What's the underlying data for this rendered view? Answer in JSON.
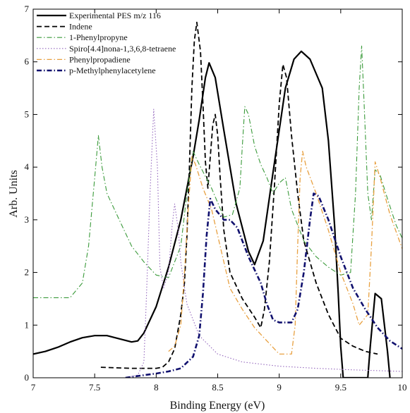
{
  "chart_data": {
    "type": "line",
    "title": "",
    "xlabel": "Binding Energy (eV)",
    "ylabel": "Arb. Units",
    "xlim": [
      7,
      10
    ],
    "ylim": [
      0,
      7
    ],
    "xticks": [
      7,
      7.5,
      8,
      8.5,
      9,
      9.5,
      10
    ],
    "xtick_labels": [
      "7",
      "7.5",
      "8",
      "8.5",
      "9",
      "9.5",
      "10"
    ],
    "yticks": [
      0,
      1,
      2,
      3,
      4,
      5,
      6,
      7
    ],
    "ytick_labels": [
      "0",
      "1",
      "2",
      "3",
      "4",
      "5",
      "6",
      "7"
    ],
    "grid": false,
    "legend_position": "top-center",
    "series": [
      {
        "name": "Experimental PES m/z 116",
        "color": "#000000",
        "dash": "solid",
        "width": 2.2,
        "points": [
          [
            7,
            0.45
          ],
          [
            7.1,
            0.5
          ],
          [
            7.2,
            0.58
          ],
          [
            7.3,
            0.68
          ],
          [
            7.4,
            0.76
          ],
          [
            7.5,
            0.8
          ],
          [
            7.6,
            0.8
          ],
          [
            7.7,
            0.74
          ],
          [
            7.8,
            0.68
          ],
          [
            7.85,
            0.7
          ],
          [
            7.9,
            0.85
          ],
          [
            8.0,
            1.35
          ],
          [
            8.1,
            2.1
          ],
          [
            8.2,
            3.0
          ],
          [
            8.3,
            4.2
          ],
          [
            8.35,
            4.9
          ],
          [
            8.4,
            5.7
          ],
          [
            8.43,
            5.98
          ],
          [
            8.48,
            5.7
          ],
          [
            8.55,
            4.7
          ],
          [
            8.65,
            3.3
          ],
          [
            8.75,
            2.4
          ],
          [
            8.8,
            2.15
          ],
          [
            8.87,
            2.6
          ],
          [
            8.95,
            3.9
          ],
          [
            9.05,
            5.5
          ],
          [
            9.12,
            6.05
          ],
          [
            9.18,
            6.2
          ],
          [
            9.25,
            6.05
          ],
          [
            9.35,
            5.5
          ],
          [
            9.4,
            4.5
          ],
          [
            9.45,
            2.9
          ],
          [
            9.48,
            1.6
          ],
          [
            9.5,
            0.6
          ],
          [
            9.52,
            0.0
          ],
          [
            9.72,
            0.0
          ],
          [
            9.74,
            0.6
          ],
          [
            9.78,
            1.6
          ],
          [
            9.83,
            1.5
          ],
          [
            9.88,
            0.5
          ],
          [
            9.9,
            0.0
          ]
        ]
      },
      {
        "name": "Indene",
        "color": "#000000",
        "dash": "dash",
        "width": 1.8,
        "points": [
          [
            7.55,
            0.2
          ],
          [
            7.8,
            0.18
          ],
          [
            8.0,
            0.18
          ],
          [
            8.05,
            0.2
          ],
          [
            8.1,
            0.3
          ],
          [
            8.15,
            0.55
          ],
          [
            8.2,
            1.2
          ],
          [
            8.23,
            1.8
          ],
          [
            8.25,
            2.7
          ],
          [
            8.27,
            4.0
          ],
          [
            8.29,
            5.5
          ],
          [
            8.31,
            6.4
          ],
          [
            8.33,
            6.75
          ],
          [
            8.36,
            6.2
          ],
          [
            8.38,
            5.2
          ],
          [
            8.4,
            4.1
          ],
          [
            8.42,
            3.6
          ],
          [
            8.44,
            4.2
          ],
          [
            8.46,
            4.8
          ],
          [
            8.48,
            5.0
          ],
          [
            8.5,
            4.6
          ],
          [
            8.52,
            3.8
          ],
          [
            8.55,
            2.8
          ],
          [
            8.6,
            2.0
          ],
          [
            8.7,
            1.5
          ],
          [
            8.8,
            1.15
          ],
          [
            8.85,
            0.95
          ],
          [
            8.88,
            1.3
          ],
          [
            8.92,
            2.2
          ],
          [
            8.96,
            3.6
          ],
          [
            9.0,
            5.2
          ],
          [
            9.03,
            5.95
          ],
          [
            9.06,
            5.7
          ],
          [
            9.1,
            4.6
          ],
          [
            9.15,
            3.5
          ],
          [
            9.2,
            2.6
          ],
          [
            9.3,
            1.8
          ],
          [
            9.4,
            1.2
          ],
          [
            9.5,
            0.75
          ],
          [
            9.6,
            0.6
          ],
          [
            9.7,
            0.5
          ],
          [
            9.8,
            0.45
          ]
        ]
      },
      {
        "name": "1-Phenylpropyne",
        "color": "#3a9a3a",
        "dash": "dashdot",
        "width": 1.1,
        "points": [
          [
            7,
            1.52
          ],
          [
            7.3,
            1.52
          ],
          [
            7.4,
            1.8
          ],
          [
            7.45,
            2.5
          ],
          [
            7.5,
            3.8
          ],
          [
            7.53,
            4.6
          ],
          [
            7.56,
            4.0
          ],
          [
            7.6,
            3.5
          ],
          [
            7.7,
            3.0
          ],
          [
            7.8,
            2.5
          ],
          [
            7.9,
            2.2
          ],
          [
            8.0,
            1.95
          ],
          [
            8.1,
            1.9
          ],
          [
            8.2,
            2.5
          ],
          [
            8.25,
            3.5
          ],
          [
            8.3,
            4.3
          ],
          [
            8.35,
            4.05
          ],
          [
            8.45,
            3.6
          ],
          [
            8.55,
            3.05
          ],
          [
            8.62,
            3.1
          ],
          [
            8.68,
            3.6
          ],
          [
            8.7,
            4.4
          ],
          [
            8.72,
            5.15
          ],
          [
            8.75,
            5.0
          ],
          [
            8.8,
            4.4
          ],
          [
            8.85,
            4.05
          ],
          [
            8.9,
            3.8
          ],
          [
            8.95,
            3.5
          ],
          [
            9.0,
            3.7
          ],
          [
            9.05,
            3.8
          ],
          [
            9.1,
            3.2
          ],
          [
            9.2,
            2.6
          ],
          [
            9.3,
            2.3
          ],
          [
            9.4,
            2.1
          ],
          [
            9.5,
            1.95
          ],
          [
            9.58,
            2.0
          ],
          [
            9.62,
            3.5
          ],
          [
            9.65,
            5.5
          ],
          [
            9.67,
            6.3
          ],
          [
            9.69,
            5.2
          ],
          [
            9.72,
            3.5
          ],
          [
            9.75,
            3.0
          ],
          [
            9.78,
            3.95
          ],
          [
            9.82,
            3.85
          ],
          [
            9.88,
            3.4
          ],
          [
            9.95,
            2.9
          ],
          [
            10,
            2.65
          ]
        ]
      },
      {
        "name": "Spiro[4.4]nona-1,3,6,8-tetraene",
        "color": "#9467bd",
        "dash": "dot",
        "width": 1.1,
        "points": [
          [
            7.75,
            0.0
          ],
          [
            7.85,
            0.05
          ],
          [
            7.9,
            0.3
          ],
          [
            7.92,
            1.5
          ],
          [
            7.95,
            3.5
          ],
          [
            7.98,
            5.1
          ],
          [
            8.01,
            4.0
          ],
          [
            8.03,
            2.1
          ],
          [
            8.06,
            1.7
          ],
          [
            8.1,
            2.0
          ],
          [
            8.13,
            2.9
          ],
          [
            8.15,
            3.3
          ],
          [
            8.18,
            2.8
          ],
          [
            8.2,
            2.2
          ],
          [
            8.25,
            1.4
          ],
          [
            8.35,
            0.8
          ],
          [
            8.5,
            0.45
          ],
          [
            8.7,
            0.3
          ],
          [
            9.0,
            0.22
          ],
          [
            9.3,
            0.18
          ],
          [
            9.6,
            0.15
          ],
          [
            10,
            0.12
          ]
        ]
      },
      {
        "name": "Phenylpropadiene",
        "color": "#e8a040",
        "dash": "dashdot",
        "width": 1.3,
        "points": [
          [
            8.1,
            0.5
          ],
          [
            8.15,
            0.6
          ],
          [
            8.2,
            1.0
          ],
          [
            8.23,
            2.0
          ],
          [
            8.26,
            3.2
          ],
          [
            8.29,
            4.2
          ],
          [
            8.32,
            4.05
          ],
          [
            8.38,
            3.6
          ],
          [
            8.45,
            3.2
          ],
          [
            8.5,
            2.7
          ],
          [
            8.55,
            2.2
          ],
          [
            8.6,
            1.7
          ],
          [
            8.7,
            1.3
          ],
          [
            8.8,
            0.95
          ],
          [
            8.9,
            0.7
          ],
          [
            9.0,
            0.45
          ],
          [
            9.1,
            0.45
          ],
          [
            9.13,
            1.0
          ],
          [
            9.15,
            2.5
          ],
          [
            9.17,
            3.8
          ],
          [
            9.19,
            4.3
          ],
          [
            9.22,
            4.0
          ],
          [
            9.3,
            3.5
          ],
          [
            9.4,
            2.8
          ],
          [
            9.5,
            2.0
          ],
          [
            9.6,
            1.4
          ],
          [
            9.65,
            1.0
          ],
          [
            9.72,
            1.2
          ],
          [
            9.75,
            2.5
          ],
          [
            9.78,
            4.1
          ],
          [
            9.82,
            3.8
          ],
          [
            9.9,
            3.1
          ],
          [
            10,
            2.45
          ]
        ]
      },
      {
        "name": "p-Methylphenylacetylene",
        "color": "#10106e",
        "dash": "dashdot",
        "width": 2.6,
        "points": [
          [
            7.75,
            0.0
          ],
          [
            7.9,
            0.05
          ],
          [
            8.0,
            0.08
          ],
          [
            8.1,
            0.12
          ],
          [
            8.2,
            0.18
          ],
          [
            8.3,
            0.4
          ],
          [
            8.35,
            0.8
          ],
          [
            8.38,
            1.6
          ],
          [
            8.41,
            2.7
          ],
          [
            8.44,
            3.4
          ],
          [
            8.48,
            3.2
          ],
          [
            8.55,
            3.0
          ],
          [
            8.6,
            3.0
          ],
          [
            8.66,
            2.85
          ],
          [
            8.7,
            2.6
          ],
          [
            8.75,
            2.3
          ],
          [
            8.85,
            1.8
          ],
          [
            8.9,
            1.4
          ],
          [
            8.95,
            1.1
          ],
          [
            9.0,
            1.05
          ],
          [
            9.1,
            1.05
          ],
          [
            9.15,
            1.3
          ],
          [
            9.2,
            2.0
          ],
          [
            9.25,
            3.0
          ],
          [
            9.28,
            3.5
          ],
          [
            9.32,
            3.45
          ],
          [
            9.4,
            3.0
          ],
          [
            9.5,
            2.3
          ],
          [
            9.6,
            1.7
          ],
          [
            9.7,
            1.3
          ],
          [
            9.8,
            0.95
          ],
          [
            9.9,
            0.7
          ],
          [
            10,
            0.55
          ]
        ]
      }
    ]
  }
}
